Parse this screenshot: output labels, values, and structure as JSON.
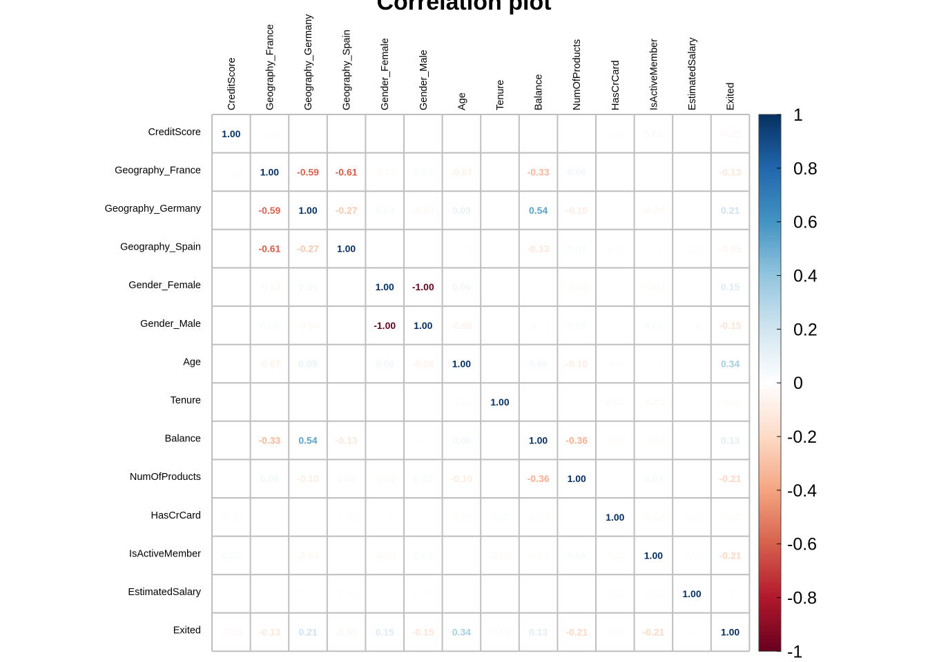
{
  "chart_data": {
    "type": "heatmap",
    "title": "Correlation plot",
    "variables": [
      "CreditScore",
      "Geography_France",
      "Geography_Germany",
      "Geography_Spain",
      "Gender_Female",
      "Gender_Male",
      "Age",
      "Tenure",
      "Balance",
      "NumOfProducts",
      "HasCrCard",
      "IsActiveMember",
      "EstimatedSalary",
      "Exited"
    ],
    "matrix": [
      [
        1.0,
        -0.01,
        0.01,
        0.0,
        0.0,
        0.0,
        0.0,
        0.0,
        0.01,
        0.01,
        -0.01,
        0.03,
        0.0,
        -0.03
      ],
      [
        -0.01,
        1.0,
        -0.59,
        -0.61,
        -0.03,
        0.03,
        -0.07,
        0.0,
        -0.33,
        0.06,
        0.0,
        0.0,
        0.0,
        -0.13
      ],
      [
        0.01,
        -0.59,
        1.0,
        -0.27,
        0.04,
        -0.04,
        0.09,
        0.0,
        0.54,
        -0.1,
        0.01,
        -0.04,
        0.01,
        0.21
      ],
      [
        0.0,
        -0.61,
        -0.27,
        1.0,
        0.0,
        0.0,
        -0.01,
        0.0,
        -0.13,
        0.03,
        -0.01,
        0.01,
        -0.01,
        -0.05
      ],
      [
        0.0,
        -0.03,
        0.04,
        0.0,
        1.0,
        -1.0,
        0.06,
        0.01,
        0.01,
        -0.03,
        0.01,
        -0.03,
        0.01,
        0.15
      ],
      [
        0.0,
        0.03,
        -0.04,
        0.0,
        -1.0,
        1.0,
        -0.06,
        0.01,
        -0.01,
        0.03,
        0.01,
        0.03,
        -0.01,
        -0.15
      ],
      [
        0.0,
        -0.07,
        0.09,
        -0.01,
        0.06,
        -0.06,
        1.0,
        -0.01,
        0.06,
        -0.1,
        -0.01,
        0.01,
        0.0,
        0.34
      ],
      [
        0.0,
        0.0,
        0.0,
        0.0,
        0.01,
        0.01,
        -0.01,
        1.0,
        0.0,
        0.01,
        0.02,
        -0.03,
        0.01,
        -0.02
      ],
      [
        0.01,
        -0.33,
        0.54,
        -0.13,
        0.01,
        -0.01,
        0.06,
        0.0,
        1.0,
        -0.36,
        -0.02,
        -0.02,
        0.01,
        0.13
      ],
      [
        0.01,
        0.06,
        -0.1,
        0.03,
        -0.03,
        0.03,
        -0.1,
        0.01,
        -0.36,
        1.0,
        0.0,
        0.04,
        0.01,
        -0.21
      ],
      [
        -0.01,
        0.0,
        0.01,
        -0.01,
        0.01,
        0.01,
        -0.01,
        0.02,
        -0.02,
        0.0,
        1.0,
        -0.02,
        -0.01,
        -0.02
      ],
      [
        0.03,
        0.0,
        -0.04,
        0.01,
        -0.03,
        0.03,
        0.01,
        -0.03,
        -0.02,
        0.04,
        -0.02,
        1.0,
        -0.01,
        -0.21
      ],
      [
        0.0,
        0.0,
        0.01,
        -0.01,
        0.01,
        -0.01,
        0.0,
        0.01,
        0.01,
        0.01,
        -0.01,
        -0.01,
        1.0,
        0.01
      ],
      [
        -0.03,
        -0.13,
        0.21,
        -0.05,
        0.15,
        -0.15,
        0.34,
        -0.02,
        0.13,
        -0.21,
        -0.02,
        -0.21,
        0.01,
        1.0
      ]
    ],
    "colorbar": {
      "range": [
        -1,
        1
      ],
      "ticks": [
        "1",
        "0.8",
        "0.6",
        "0.4",
        "0.2",
        "0",
        "-0.2",
        "-0.4",
        "-0.6",
        "-0.8",
        "-1"
      ],
      "tick_values": [
        1,
        0.8,
        0.6,
        0.4,
        0.2,
        0,
        -0.2,
        -0.4,
        -0.6,
        -0.8,
        -1
      ],
      "colors": [
        "#67001F",
        "#B2182B",
        "#D6604D",
        "#F4A582",
        "#FDDBC7",
        "#FFFFFF",
        "#D1E5F0",
        "#92C5DE",
        "#4393C3",
        "#2166AC",
        "#053061"
      ]
    },
    "grid": true
  }
}
